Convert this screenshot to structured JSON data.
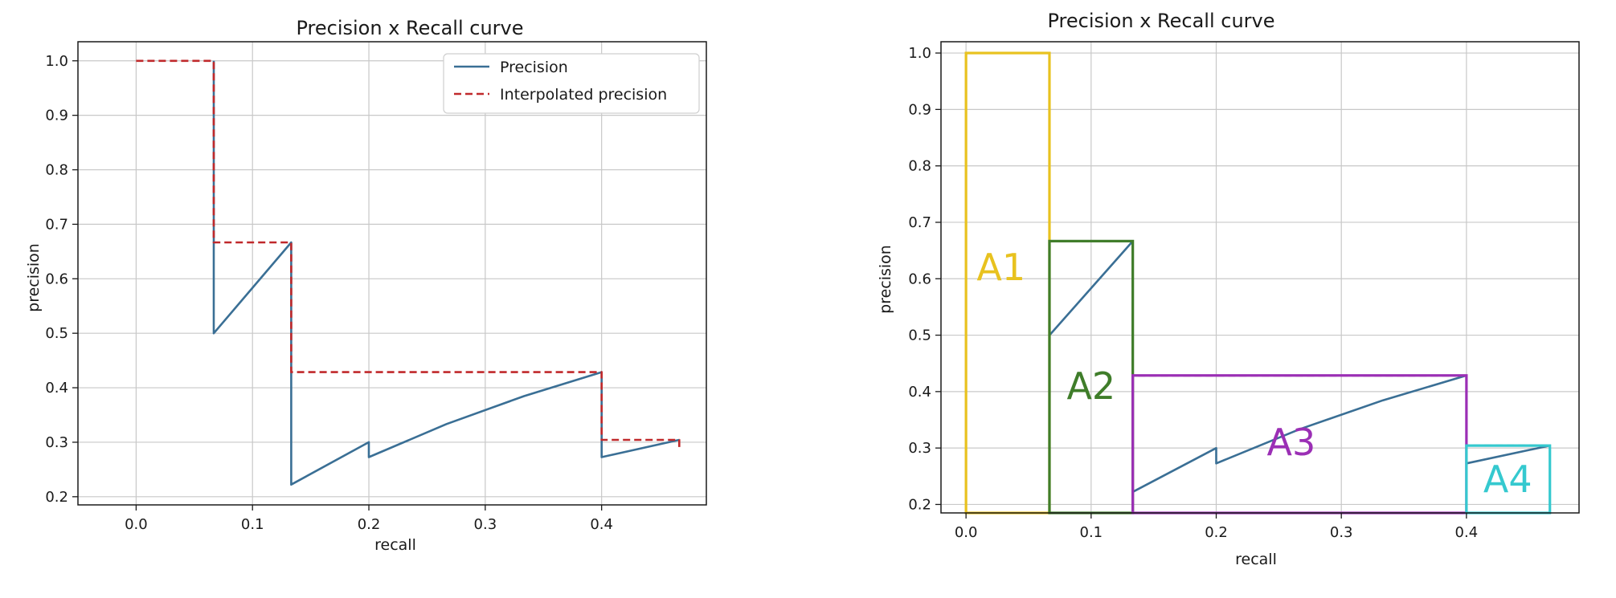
{
  "chart_data": [
    {
      "type": "line",
      "title": "Precision x Recall curve",
      "xlabel": "recall",
      "ylabel": "precision",
      "xlim": [
        -0.05,
        0.49
      ],
      "ylim": [
        0.185,
        1.035
      ],
      "xticks": [
        "0.0",
        "0.1",
        "0.2",
        "0.3",
        "0.4"
      ],
      "xtick_values": [
        0.0,
        0.1,
        0.2,
        0.3,
        0.4
      ],
      "yticks": [
        "0.2",
        "0.3",
        "0.4",
        "0.5",
        "0.6",
        "0.7",
        "0.8",
        "0.9",
        "1.0"
      ],
      "ytick_values": [
        0.2,
        0.3,
        0.4,
        0.5,
        0.6,
        0.7,
        0.8,
        0.9,
        1.0
      ],
      "grid": true,
      "legend": "top-right",
      "series": [
        {
          "name": "Precision",
          "color": "#3a6f95",
          "style": "solid",
          "x": [
            0.0667,
            0.0667,
            0.1333,
            0.1333,
            0.1333,
            0.2,
            0.2,
            0.2667,
            0.3333,
            0.4,
            0.4,
            0.4667
          ],
          "y": [
            1.0,
            0.5,
            0.6667,
            0.5,
            0.2222,
            0.3,
            0.2727,
            0.3333,
            0.3846,
            0.4286,
            0.2727,
            0.3043
          ]
        },
        {
          "name": "Interpolated precision",
          "color": "#c0292b",
          "style": "dashed",
          "x": [
            0.0,
            0.0667,
            0.0667,
            0.1333,
            0.1333,
            0.4,
            0.4,
            0.4667,
            0.4667
          ],
          "y": [
            1.0,
            1.0,
            0.6667,
            0.6667,
            0.4286,
            0.4286,
            0.3043,
            0.3043,
            0.29
          ]
        }
      ]
    },
    {
      "type": "line",
      "title": "Precision x Recall curve",
      "xlabel": "recall",
      "ylabel": "precision",
      "xlim": [
        -0.02,
        0.49
      ],
      "ylim": [
        0.185,
        1.02
      ],
      "xticks": [
        "0.0",
        "0.1",
        "0.2",
        "0.3",
        "0.4"
      ],
      "xtick_values": [
        0.0,
        0.1,
        0.2,
        0.3,
        0.4
      ],
      "yticks": [
        "0.2",
        "0.3",
        "0.4",
        "0.5",
        "0.6",
        "0.7",
        "0.8",
        "0.9",
        "1.0"
      ],
      "ytick_values": [
        0.2,
        0.3,
        0.4,
        0.5,
        0.6,
        0.7,
        0.8,
        0.9,
        1.0
      ],
      "grid": true,
      "series": [
        {
          "color": "#3a6f95",
          "style": "solid",
          "x": [
            0.0667,
            0.0667,
            0.1333,
            0.1333,
            0.1333,
            0.2,
            0.2,
            0.2667,
            0.3333,
            0.4,
            0.4,
            0.4667
          ],
          "y": [
            1.0,
            0.5,
            0.6667,
            0.5,
            0.2222,
            0.3,
            0.2727,
            0.3333,
            0.3846,
            0.4286,
            0.2727,
            0.3043
          ]
        },
        {
          "color": "#c0292b",
          "style": "dashed",
          "x": [
            0.0,
            0.0667,
            0.0667,
            0.1333,
            0.1333,
            0.4,
            0.4,
            0.4667
          ],
          "y": [
            1.0,
            1.0,
            0.6667,
            0.6667,
            0.4286,
            0.4286,
            0.3043,
            0.3043
          ]
        }
      ],
      "regions": [
        {
          "label": "A1",
          "x0": 0.0,
          "x1": 0.0667,
          "y0": 0.185,
          "y1": 1.0,
          "color": "#e8c21f",
          "label_x": 0.028,
          "label_y": 0.62
        },
        {
          "label": "A2",
          "x0": 0.0667,
          "x1": 0.1333,
          "y0": 0.185,
          "y1": 0.6667,
          "color": "#3f7d2a",
          "label_x": 0.1,
          "label_y": 0.41
        },
        {
          "label": "A3",
          "x0": 0.1333,
          "x1": 0.4,
          "y0": 0.185,
          "y1": 0.4286,
          "color": "#9b2fb5",
          "label_x": 0.26,
          "label_y": 0.31
        },
        {
          "label": "A4",
          "x0": 0.4,
          "x1": 0.4667,
          "y0": 0.185,
          "y1": 0.3043,
          "color": "#35c9cf",
          "label_x": 0.433,
          "label_y": 0.245
        }
      ]
    }
  ]
}
